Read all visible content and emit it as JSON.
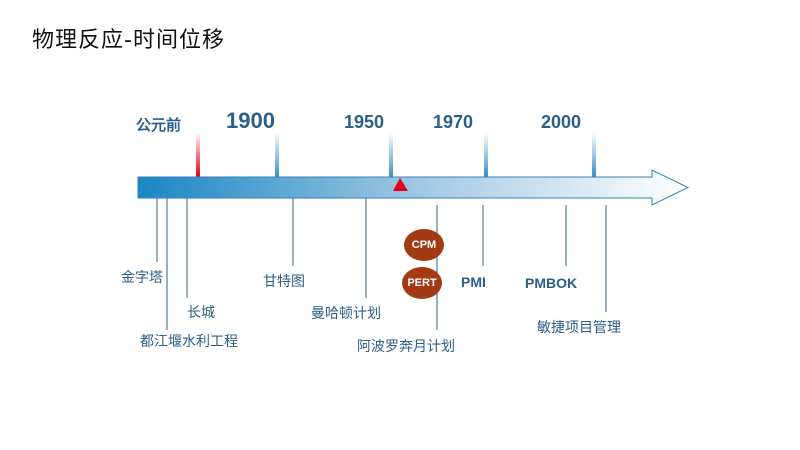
{
  "slide": {
    "title": "物理反应-时间位移"
  },
  "timeline": {
    "eras": [
      {
        "label": "公元前"
      },
      {
        "label": "1900"
      },
      {
        "label": "1950"
      },
      {
        "label": "1970"
      },
      {
        "label": "2000"
      }
    ],
    "milestones": [
      {
        "label": "金字塔"
      },
      {
        "label": "都江堰水利工程"
      },
      {
        "label": "长城"
      },
      {
        "label": "甘特图"
      },
      {
        "label": "曼哈顿计划"
      },
      {
        "label": "阿波罗奔月计划"
      },
      {
        "label": "敏捷项目管理"
      }
    ],
    "methods": {
      "cpm": "CPM",
      "pert": "PERT",
      "pmi": "PMI",
      "pmbok": "PMBOK"
    }
  },
  "colors": {
    "arrow_start": "#1e8ac6",
    "arrow_end": "#ffffff",
    "marker": "#e0001a",
    "badge": "#a33a14",
    "text": "#2c5f86"
  }
}
